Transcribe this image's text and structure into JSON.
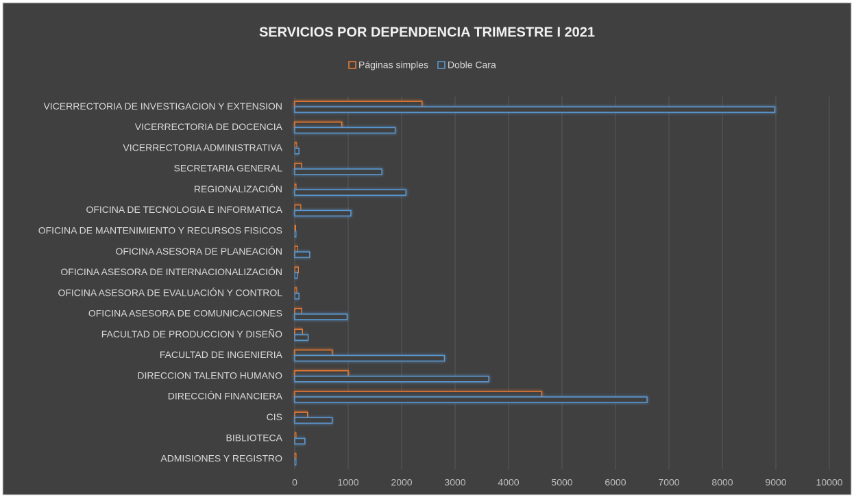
{
  "chart_data": {
    "type": "hbar",
    "title": "SERVICIOS POR DEPENDENCIA TRIMESTRE I 2021",
    "categories": [
      "VICERRECTORIA DE INVESTIGACION Y EXTENSION",
      "VICERRECTORIA DE DOCENCIA",
      "VICERRECTORIA ADMINISTRATIVA",
      "SECRETARIA GENERAL",
      "REGIONALIZACIÓN",
      "OFICINA DE TECNOLOGIA E INFORMATICA",
      "OFICINA DE MANTENIMIENTO Y RECURSOS FISICOS",
      "OFICINA ASESORA DE PLANEACIÓN",
      "OFICINA ASESORA DE INTERNACIONALIZACIÓN",
      "OFICINA ASESORA DE EVALUACIÓN Y CONTROL",
      "OFICINA ASESORA DE COMUNICACIONES",
      "FACULTAD DE PRODUCCION Y DISEÑO",
      "FACULTAD DE INGENIERIA",
      "DIRECCION TALENTO HUMANO",
      "DIRECCIÓN FINANCIERA",
      "CIS",
      "BIBLIOTECA",
      "ADMISIONES Y REGISTRO"
    ],
    "series": [
      {
        "name": "Páginas simples",
        "color": "#ed7d31",
        "values": [
          2380,
          880,
          40,
          130,
          30,
          115,
          20,
          60,
          70,
          40,
          130,
          145,
          700,
          1000,
          4620,
          240,
          30,
          30
        ]
      },
      {
        "name": "Doble Cara",
        "color": "#5b9bd5",
        "values": [
          8980,
          1880,
          80,
          1630,
          2080,
          1050,
          30,
          280,
          50,
          80,
          980,
          250,
          2800,
          3630,
          6590,
          700,
          190,
          30
        ]
      }
    ],
    "xlim": [
      0,
      10000
    ],
    "xticks": [
      0,
      1000,
      2000,
      3000,
      4000,
      5000,
      6000,
      7000,
      8000,
      9000,
      10000
    ],
    "grid": true,
    "legend": "top"
  }
}
